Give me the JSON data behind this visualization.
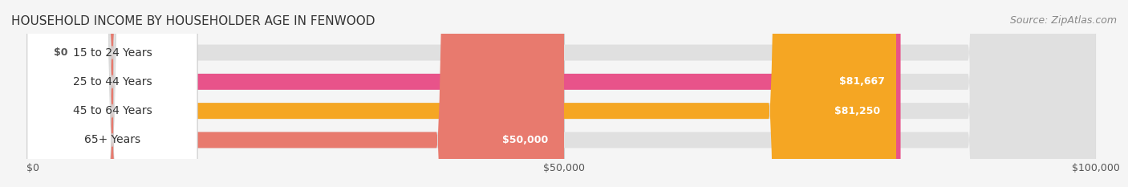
{
  "title": "HOUSEHOLD INCOME BY HOUSEHOLDER AGE IN FENWOOD",
  "source": "Source: ZipAtlas.com",
  "categories": [
    "15 to 24 Years",
    "25 to 44 Years",
    "45 to 64 Years",
    "65+ Years"
  ],
  "values": [
    0,
    81667,
    81250,
    50000
  ],
  "bar_colors": [
    "#b3b3d9",
    "#e8538a",
    "#f5a623",
    "#e87a6e"
  ],
  "xlim": [
    0,
    100000
  ],
  "xticks": [
    0,
    50000,
    100000
  ],
  "xtick_labels": [
    "$0",
    "$50,000",
    "$100,000"
  ],
  "value_labels": [
    "$0",
    "$81,667",
    "$81,250",
    "$50,000"
  ],
  "background_color": "#f5f5f5",
  "bar_background": "#e8e8e8",
  "title_fontsize": 11,
  "source_fontsize": 9,
  "label_fontsize": 10,
  "value_fontsize": 9,
  "tick_fontsize": 9
}
